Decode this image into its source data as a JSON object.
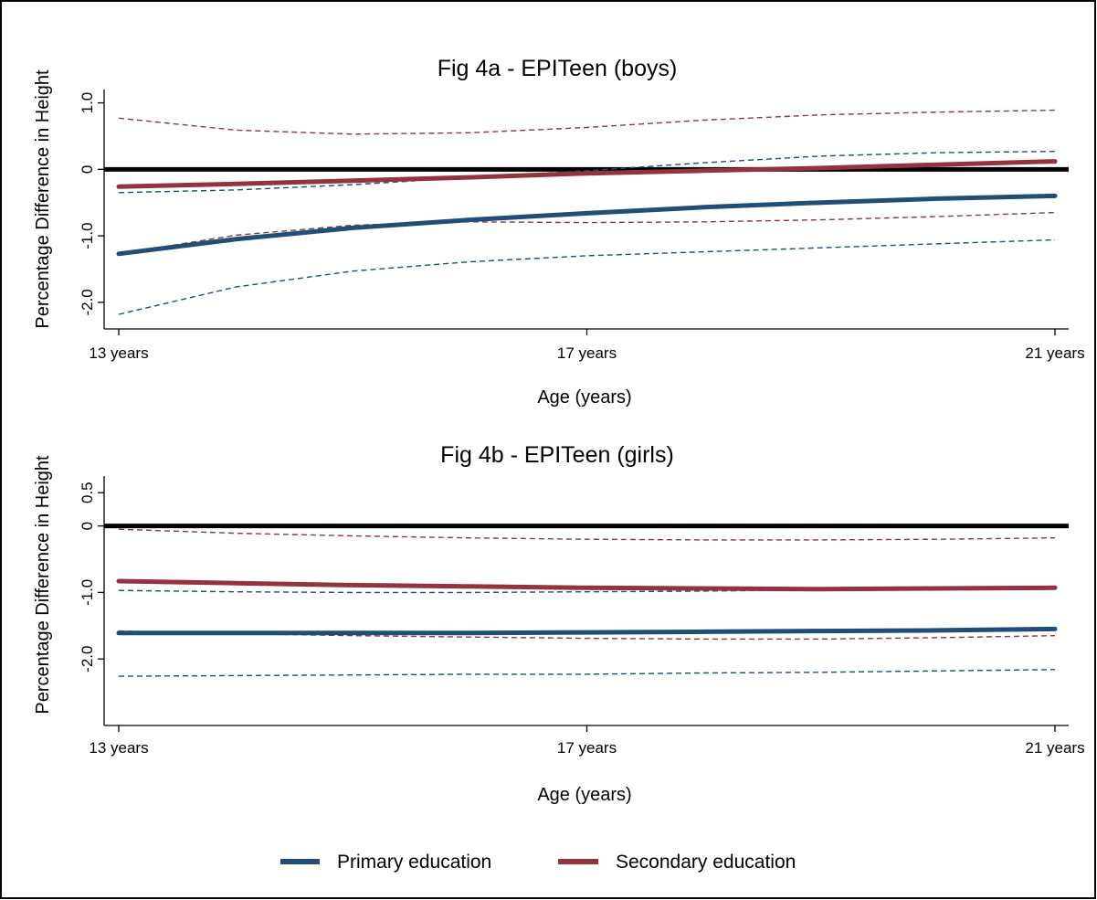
{
  "chart_data": [
    {
      "type": "line",
      "title": "Fig 4a - EPITeen (boys)",
      "xlabel": "Age (years)",
      "ylabel": "Percentage Difference in Height",
      "x_ticks": [
        13,
        17,
        21
      ],
      "x_tick_labels": [
        "13 years",
        "17 years",
        "21 years"
      ],
      "xlim": [
        13,
        21
      ],
      "y_ticks": [
        1.0,
        0,
        -1.0,
        -2.0
      ],
      "y_tick_labels": [
        "1.0",
        "0",
        "-1.0",
        "-2.0"
      ],
      "ylim": [
        -2.4,
        1.2
      ],
      "reference_line": 0,
      "grid": false,
      "x": [
        13,
        14,
        15,
        16,
        17,
        18,
        19,
        20,
        21
      ],
      "series": [
        {
          "name": "Primary education",
          "color": "#1f4e79",
          "values": [
            -1.27,
            -1.05,
            -0.88,
            -0.76,
            -0.66,
            -0.57,
            -0.5,
            -0.44,
            -0.4
          ],
          "ci_lower": [
            -2.18,
            -1.77,
            -1.53,
            -1.39,
            -1.3,
            -1.24,
            -1.18,
            -1.12,
            -1.06
          ],
          "ci_upper": [
            -0.35,
            -0.31,
            -0.23,
            -0.12,
            -0.02,
            0.1,
            0.2,
            0.25,
            0.27
          ]
        },
        {
          "name": "Secondary education",
          "color": "#943340",
          "values": [
            -0.26,
            -0.22,
            -0.17,
            -0.12,
            -0.06,
            -0.02,
            0.02,
            0.07,
            0.12
          ],
          "ci_lower": [
            -1.27,
            -0.99,
            -0.84,
            -0.79,
            -0.8,
            -0.79,
            -0.76,
            -0.71,
            -0.65
          ],
          "ci_upper": [
            0.77,
            0.59,
            0.53,
            0.55,
            0.63,
            0.74,
            0.82,
            0.86,
            0.89
          ]
        }
      ]
    },
    {
      "type": "line",
      "title": "Fig 4b - EPITeen (girls)",
      "xlabel": "Age (years)",
      "ylabel": "Percentage Difference in Height",
      "x_ticks": [
        13,
        17,
        21
      ],
      "x_tick_labels": [
        "13 years",
        "17 years",
        "21 years"
      ],
      "xlim": [
        13,
        21
      ],
      "y_ticks": [
        0.5,
        0,
        -1.0,
        -2.0
      ],
      "y_tick_labels": [
        "0.5",
        "0",
        "-1.0",
        "-2.0"
      ],
      "ylim": [
        -3.0,
        0.75
      ],
      "reference_line": 0,
      "grid": false,
      "x": [
        13,
        14,
        15,
        16,
        17,
        18,
        19,
        20,
        21
      ],
      "series": [
        {
          "name": "Primary education",
          "color": "#1f4e79",
          "values": [
            -1.61,
            -1.61,
            -1.61,
            -1.61,
            -1.6,
            -1.59,
            -1.58,
            -1.57,
            -1.55
          ],
          "ci_lower": [
            -2.26,
            -2.25,
            -2.24,
            -2.23,
            -2.23,
            -2.21,
            -2.2,
            -2.18,
            -2.16
          ],
          "ci_upper": [
            -0.97,
            -0.99,
            -1.0,
            -1.0,
            -0.99,
            -0.98,
            -0.96,
            -0.95,
            -0.93
          ]
        },
        {
          "name": "Secondary education",
          "color": "#943340",
          "values": [
            -0.83,
            -0.86,
            -0.89,
            -0.91,
            -0.93,
            -0.94,
            -0.95,
            -0.94,
            -0.93
          ],
          "ci_lower": [
            -1.58,
            -1.62,
            -1.65,
            -1.67,
            -1.69,
            -1.7,
            -1.7,
            -1.68,
            -1.65
          ],
          "ci_upper": [
            -0.05,
            -0.11,
            -0.15,
            -0.18,
            -0.2,
            -0.21,
            -0.21,
            -0.2,
            -0.18
          ]
        }
      ]
    }
  ],
  "legend": {
    "position": "bottom",
    "items": [
      {
        "label": "Primary education",
        "color": "#1f4e79"
      },
      {
        "label": "Secondary education",
        "color": "#943340"
      }
    ]
  }
}
